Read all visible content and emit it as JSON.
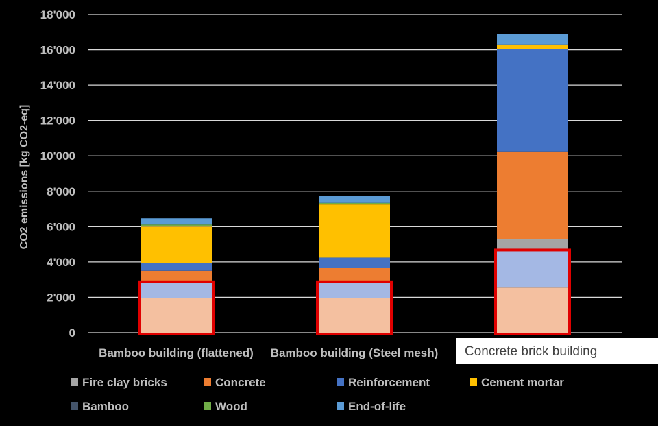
{
  "chart_data": {
    "type": "bar",
    "stacked": true,
    "ylabel": "CO2 emissions [kg CO2-eq]",
    "ylim": [
      0,
      18000
    ],
    "yticks": [
      0,
      2000,
      4000,
      6000,
      8000,
      10000,
      12000,
      14000,
      16000,
      18000
    ],
    "ytick_labels": [
      "0",
      "2'000",
      "4'000",
      "6'000",
      "8'000",
      "10'000",
      "12'000",
      "14'000",
      "16'000",
      "18'000"
    ],
    "categories": [
      "Bamboo building (flattened)",
      "Bamboo building (Steel mesh)",
      "Concrete brick building"
    ],
    "series": [
      {
        "name": "Fire clay bricks",
        "color": "#a5a5a5",
        "values": [
          0,
          0,
          700
        ]
      },
      {
        "name": "Concrete",
        "color": "#ed7d31",
        "values": [
          700,
          850,
          4950
        ]
      },
      {
        "name": "Reinforcement",
        "color": "#4472c4",
        "values": [
          450,
          600,
          5800
        ]
      },
      {
        "name": "Cement mortar",
        "color": "#ffc000",
        "values": [
          2050,
          3000,
          250
        ]
      },
      {
        "name": "Bamboo",
        "color": "#44546a",
        "values": [
          20,
          20,
          0
        ]
      },
      {
        "name": "Wood",
        "color": "#70ad47",
        "values": [
          100,
          70,
          0
        ]
      },
      {
        "name": "End-of-life",
        "color": "#5b9bd5",
        "values": [
          350,
          400,
          600
        ]
      }
    ],
    "base_segments": [
      {
        "name": "lower",
        "color": "#f4c0a0",
        "values": [
          1950,
          1950,
          2550
        ]
      },
      {
        "name": "upper",
        "color": "#a4b8e4",
        "values": [
          850,
          850,
          2050
        ]
      }
    ],
    "legend_position": "bottom",
    "grid": true
  }
}
